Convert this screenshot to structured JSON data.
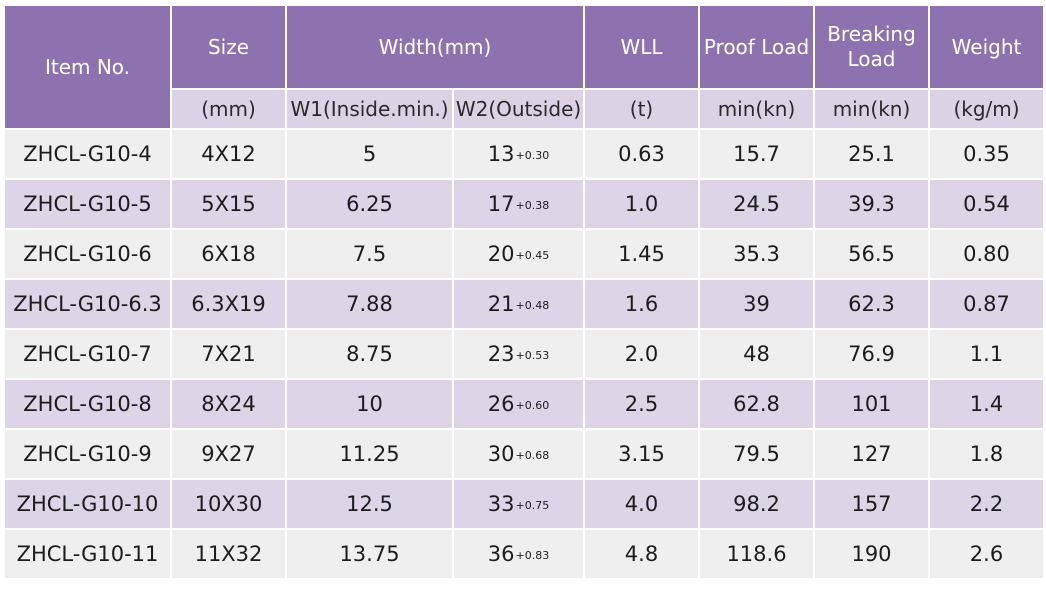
{
  "headers": {
    "item": "Item No.",
    "size": "Size",
    "width": "Width(mm)",
    "wll": "WLL",
    "proof": "Proof Load",
    "breaking": "Breaking Load",
    "weight": "Weight"
  },
  "subheaders": {
    "size": "(mm)",
    "w1": "W1(Inside.min.)",
    "w2": "W2(Outside)",
    "wll": "(t)",
    "proof": "min(kn)",
    "breaking": "min(kn)",
    "weight": "(kg/m)"
  },
  "rows": [
    {
      "item": "ZHCL-G10-4",
      "size": "4X12",
      "w1": "5",
      "w2": "13",
      "w2_tol": "+0.30",
      "wll": "0.63",
      "proof": "15.7",
      "breaking": "25.1",
      "weight": "0.35"
    },
    {
      "item": "ZHCL-G10-5",
      "size": "5X15",
      "w1": "6.25",
      "w2": "17",
      "w2_tol": "+0.38",
      "wll": "1.0",
      "proof": "24.5",
      "breaking": "39.3",
      "weight": "0.54"
    },
    {
      "item": "ZHCL-G10-6",
      "size": "6X18",
      "w1": "7.5",
      "w2": "20",
      "w2_tol": "+0.45",
      "wll": "1.45",
      "proof": "35.3",
      "breaking": "56.5",
      "weight": "0.80"
    },
    {
      "item": "ZHCL-G10-6.3",
      "size": "6.3X19",
      "w1": "7.88",
      "w2": "21",
      "w2_tol": "+0.48",
      "wll": "1.6",
      "proof": "39",
      "breaking": "62.3",
      "weight": "0.87"
    },
    {
      "item": "ZHCL-G10-7",
      "size": "7X21",
      "w1": "8.75",
      "w2": "23",
      "w2_tol": "+0.53",
      "wll": "2.0",
      "proof": "48",
      "breaking": "76.9",
      "weight": "1.1"
    },
    {
      "item": "ZHCL-G10-8",
      "size": "8X24",
      "w1": "10",
      "w2": "26",
      "w2_tol": "+0.60",
      "wll": "2.5",
      "proof": "62.8",
      "breaking": "101",
      "weight": "1.4"
    },
    {
      "item": "ZHCL-G10-9",
      "size": "9X27",
      "w1": "11.25",
      "w2": "30",
      "w2_tol": "+0.68",
      "wll": "3.15",
      "proof": "79.5",
      "breaking": "127",
      "weight": "1.8"
    },
    {
      "item": "ZHCL-G10-10",
      "size": "10X30",
      "w1": "12.5",
      "w2": "33",
      "w2_tol": "+0.75",
      "wll": "4.0",
      "proof": "98.2",
      "breaking": "157",
      "weight": "2.2"
    },
    {
      "item": "ZHCL-G10-11",
      "size": "11X32",
      "w1": "13.75",
      "w2": "36",
      "w2_tol": "+0.83",
      "wll": "4.8",
      "proof": "118.6",
      "breaking": "190",
      "weight": "2.6"
    }
  ]
}
